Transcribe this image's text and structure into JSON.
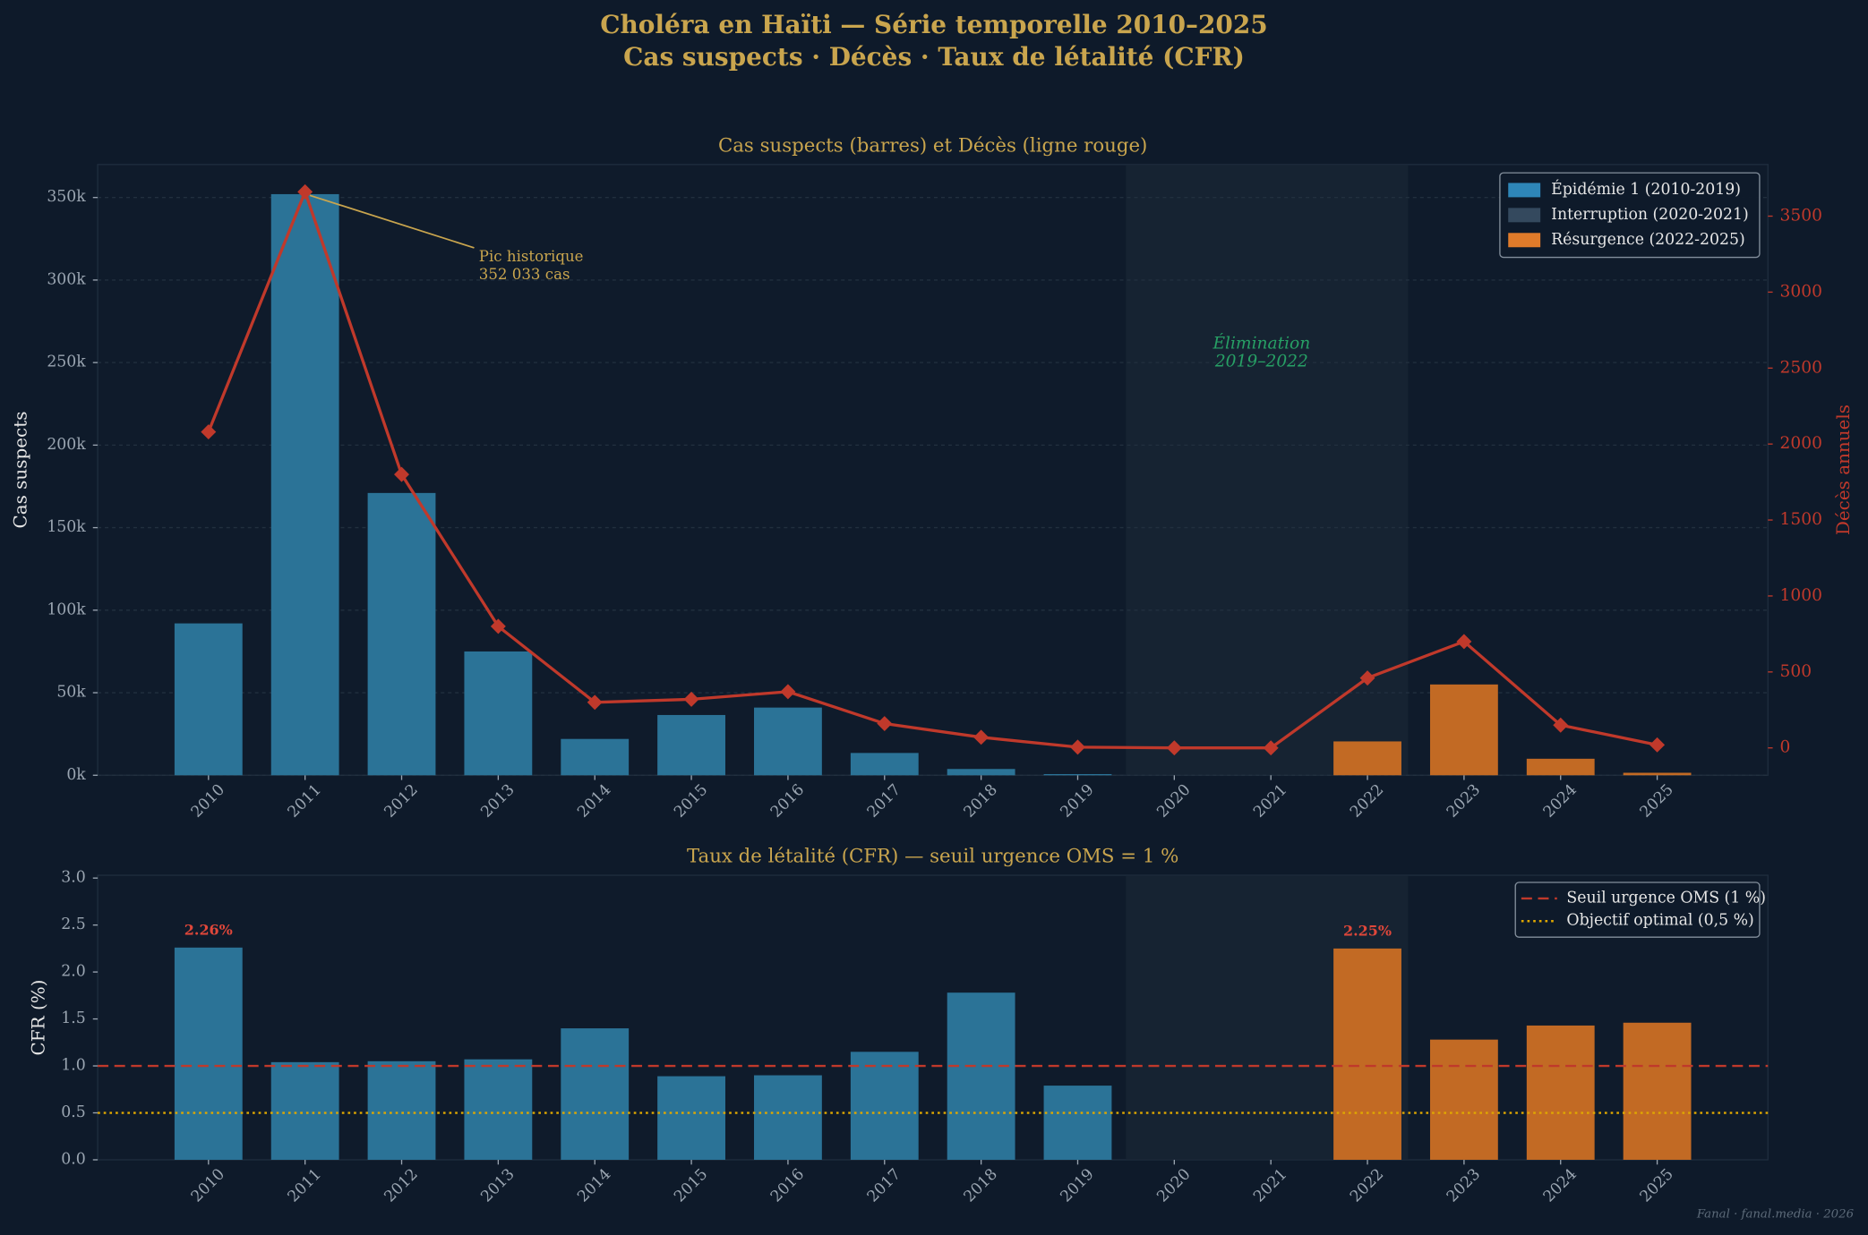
{
  "suptitle": [
    "Choléra en Haïti — Série temporelle 2010–2025",
    "Cas suspects · Décès · Taux de létalité (CFR)"
  ],
  "footer": "Fanal · fanal.media · 2026",
  "chart_data": [
    {
      "type": "bar_line",
      "title": "Cas suspects (barres) et Décès (ligne rouge)",
      "ylabel": "Cas suspects",
      "y2label": "Décès annuels",
      "categories": [
        "2010",
        "2011",
        "2012",
        "2013",
        "2014",
        "2015",
        "2016",
        "2017",
        "2018",
        "2019",
        "2020",
        "2021",
        "2022",
        "2023",
        "2024",
        "2025"
      ],
      "series": [
        {
          "values": [
            92000,
            352033,
            171000,
            75000,
            22000,
            36500,
            41000,
            13500,
            3800,
            700,
            0,
            0,
            20500,
            55000,
            10000,
            1500
          ],
          "colors": [
            "#2b7397",
            "#2b7397",
            "#2b7397",
            "#2b7397",
            "#2b7397",
            "#2b7397",
            "#2b7397",
            "#2b7397",
            "#2b7397",
            "#2b7397",
            "#34495e",
            "#34495e",
            "#c26a24",
            "#c26a24",
            "#c26a24",
            "#c26a24"
          ]
        },
        {
          "axis": "y2",
          "color": "#c0392b",
          "values": [
            2080,
            3660,
            1800,
            800,
            300,
            320,
            370,
            160,
            70,
            5,
            0,
            0,
            460,
            700,
            150,
            20
          ]
        }
      ],
      "ylim": [
        0,
        370000
      ],
      "yticks": [
        {
          "value": 0,
          "label": "0k"
        },
        {
          "value": 50000,
          "label": "50k"
        },
        {
          "value": 100000,
          "label": "100k"
        },
        {
          "value": 150000,
          "label": "150k"
        },
        {
          "value": 200000,
          "label": "200k"
        },
        {
          "value": 250000,
          "label": "250k"
        },
        {
          "value": 300000,
          "label": "300k"
        },
        {
          "value": 350000,
          "label": "350k"
        }
      ],
      "y2lim": [
        -180,
        3840
      ],
      "y2ticks": [
        0,
        500,
        1000,
        1500,
        2000,
        2500,
        3000,
        3500
      ],
      "grid": true,
      "legend": [
        {
          "name": "Épidémie 1 (2010-2019)",
          "color": "#2e86b8"
        },
        {
          "name": "Interruption (2020-2021)",
          "color": "#34495e"
        },
        {
          "name": "Résurgence (2022-2025)",
          "color": "#e07b2a"
        }
      ],
      "legend_position": "upper right",
      "annotations": [
        {
          "text": [
            "Pic historique",
            "352 033 cas"
          ],
          "color": "#c9a54e"
        },
        {
          "text": [
            "Élimination",
            "2019–2022"
          ],
          "color": "#27a065"
        }
      ]
    },
    {
      "type": "bar",
      "title": "Taux de létalité (CFR) — seuil urgence OMS = 1 %",
      "ylabel": "CFR (%)",
      "categories": [
        "2010",
        "2011",
        "2012",
        "2013",
        "2014",
        "2015",
        "2016",
        "2017",
        "2018",
        "2019",
        "2020",
        "2021",
        "2022",
        "2023",
        "2024",
        "2025"
      ],
      "values": [
        2.26,
        1.04,
        1.05,
        1.07,
        1.4,
        0.89,
        0.9,
        1.15,
        1.78,
        0.79,
        null,
        null,
        2.25,
        1.28,
        1.43,
        1.46
      ],
      "value_labels": [
        "2.26%",
        null,
        null,
        null,
        null,
        null,
        null,
        null,
        null,
        null,
        null,
        null,
        "2.25%",
        null,
        null,
        null
      ],
      "colors": [
        "#2b7397",
        "#2b7397",
        "#2b7397",
        "#2b7397",
        "#2b7397",
        "#2b7397",
        "#2b7397",
        "#2b7397",
        "#2b7397",
        "#2b7397",
        "#34495e",
        "#34495e",
        "#c26a24",
        "#c26a24",
        "#c26a24",
        "#c26a24"
      ],
      "ylim": [
        0,
        3.03
      ],
      "yticks": [
        {
          "value": 0,
          "label": "0.0"
        },
        0.5,
        {
          "value": 1,
          "label": "1.0"
        },
        1.5,
        {
          "value": 2,
          "label": "2.0"
        },
        2.5,
        {
          "value": 3,
          "label": "3.0"
        }
      ],
      "reference_lines": [
        {
          "name": "Seuil urgence OMS (1 %)",
          "value": 1,
          "color": "#c0392b",
          "style": "dashed"
        },
        {
          "name": "Objectif optimal (0,5 %)",
          "value": 0.5,
          "color": "#e0a800",
          "style": "dotted"
        }
      ],
      "legend_position": "upper right"
    }
  ]
}
